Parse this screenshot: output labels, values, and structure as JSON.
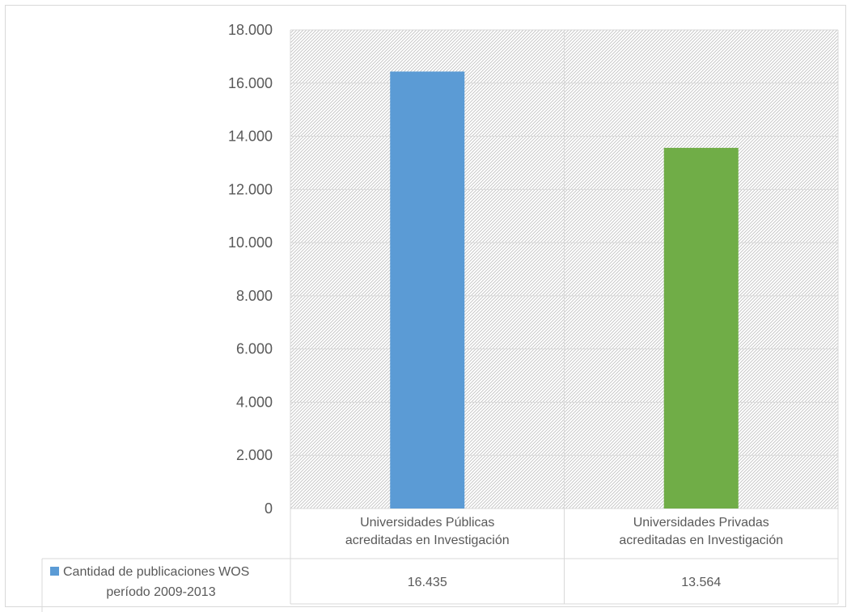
{
  "chart_data": {
    "type": "bar",
    "categories": [
      [
        "Universidades Públicas",
        "acreditadas en Investigación"
      ],
      [
        "Universidades Privadas",
        "acreditadas en Investigación"
      ]
    ],
    "series": [
      {
        "name": [
          "Cantidad de publicaciones WOS",
          "período 2009-2013"
        ],
        "values": [
          16435,
          13564
        ],
        "value_labels": [
          "16.435",
          "13.564"
        ],
        "bar_colors": [
          "#5b9bd5",
          "#70ad47"
        ]
      }
    ],
    "ylim": [
      0,
      18000
    ],
    "yticks": [
      0,
      2000,
      4000,
      6000,
      8000,
      10000,
      12000,
      14000,
      16000,
      18000
    ],
    "ytick_labels": [
      "0",
      "2.000",
      "4.000",
      "6.000",
      "8.000",
      "10.000",
      "12.000",
      "14.000",
      "16.000",
      "18.000"
    ],
    "plot_background": "diagonal-hatch",
    "legend_position": "data-table-left",
    "grid": true,
    "data_table": true
  },
  "colors": {
    "grid": "#d9d9d9",
    "hatch": "#bfbfbf",
    "legend_key": "#5b9bd5"
  }
}
